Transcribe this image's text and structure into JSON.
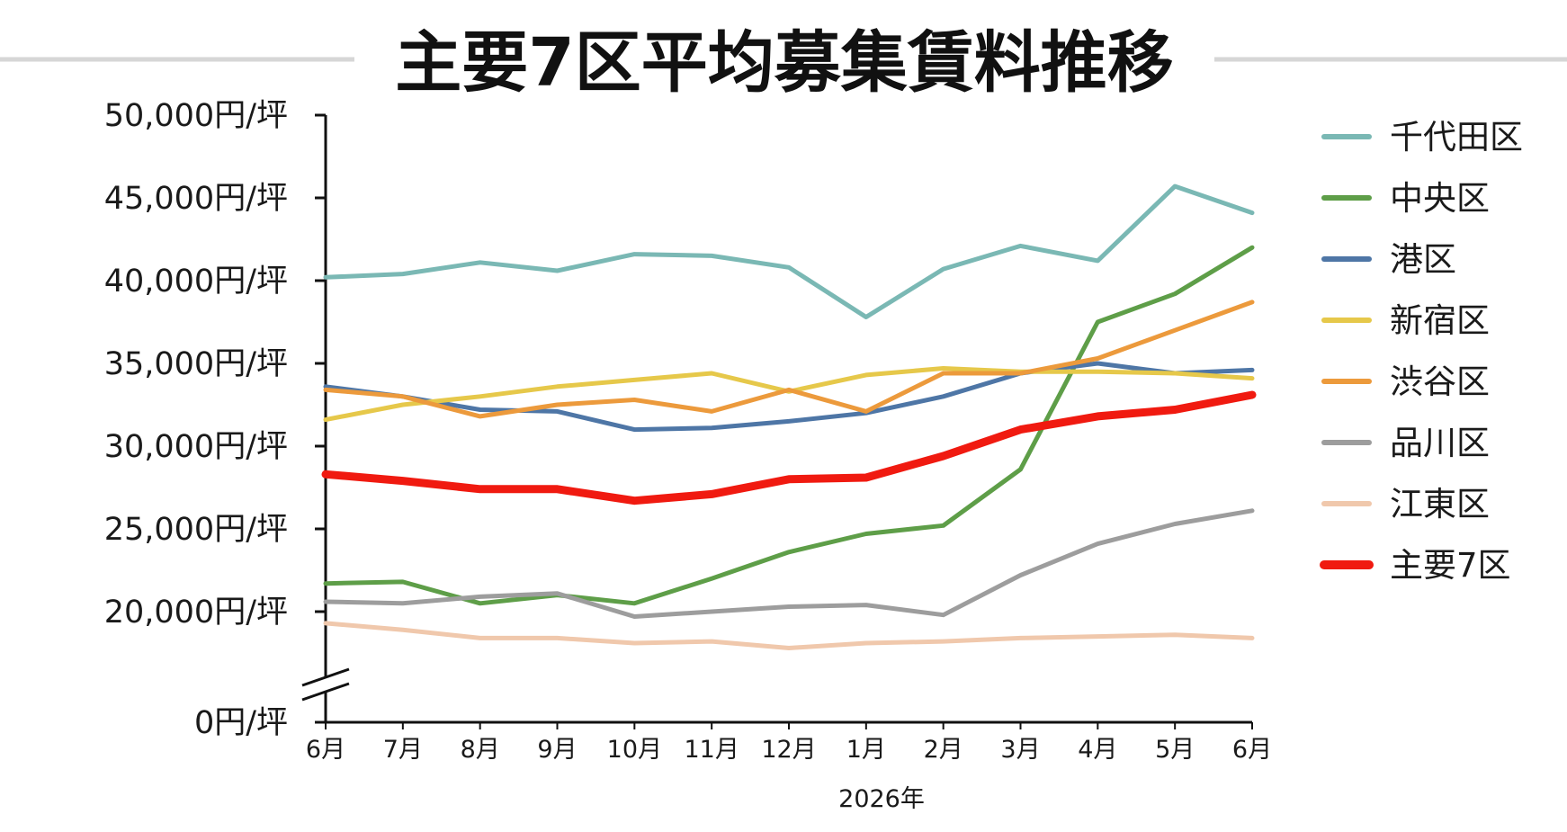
{
  "chart_data": {
    "type": "line",
    "title": "主要7区平均募集賃料推移",
    "xlabel": "2026年",
    "ylabel": "",
    "categories": [
      "6月",
      "7月",
      "8月",
      "9月",
      "10月",
      "11月",
      "12月",
      "1月",
      "2月",
      "3月",
      "4月",
      "5月",
      "6月"
    ],
    "y_tick_labels": [
      {
        "value": 0,
        "label": "0円/坪"
      },
      {
        "value": 20000,
        "label": "20,000円/坪"
      },
      {
        "value": 25000,
        "label": "25,000円/坪"
      },
      {
        "value": 30000,
        "label": "30,000円/坪"
      },
      {
        "value": 35000,
        "label": "35,000円/坪"
      },
      {
        "value": 40000,
        "label": "40,000円/坪"
      },
      {
        "value": 45000,
        "label": "45,000円/坪"
      },
      {
        "value": 50000,
        "label": "50,000円/坪"
      }
    ],
    "ylim": [
      0,
      50000
    ],
    "axis_break": true,
    "grid": false,
    "legend_position": "right",
    "series": [
      {
        "name": "千代田区",
        "color": "#7ab8b4",
        "emphasis": false,
        "values": [
          40200,
          40400,
          41100,
          40600,
          41600,
          41500,
          40800,
          37800,
          40700,
          42100,
          41200,
          45700,
          44100
        ]
      },
      {
        "name": "中央区",
        "color": "#5e9e48",
        "emphasis": false,
        "values": [
          21700,
          21800,
          20500,
          21000,
          20500,
          22000,
          23600,
          24700,
          25200,
          28600,
          37500,
          39200,
          42000
        ]
      },
      {
        "name": "港区",
        "color": "#4e76a6",
        "emphasis": false,
        "values": [
          33600,
          33000,
          32200,
          32100,
          31000,
          31100,
          31500,
          32000,
          33000,
          34400,
          35000,
          34400,
          34600
        ]
      },
      {
        "name": "新宿区",
        "color": "#e6c84a",
        "emphasis": false,
        "values": [
          31600,
          32500,
          33000,
          33600,
          34000,
          34400,
          33300,
          34300,
          34700,
          34500,
          34500,
          34400,
          34100
        ]
      },
      {
        "name": "渋谷区",
        "color": "#ec9a3c",
        "emphasis": false,
        "values": [
          33400,
          33000,
          31800,
          32500,
          32800,
          32100,
          33400,
          32100,
          34400,
          34400,
          35300,
          37000,
          38700
        ]
      },
      {
        "name": "品川区",
        "color": "#9d9d9d",
        "emphasis": false,
        "values": [
          20600,
          20500,
          20900,
          21100,
          19700,
          20000,
          20300,
          20400,
          19800,
          22200,
          24100,
          25300,
          26100
        ]
      },
      {
        "name": "江東区",
        "color": "#f0c8ac",
        "emphasis": false,
        "values": [
          19300,
          18900,
          18400,
          18400,
          18100,
          18200,
          17800,
          18100,
          18200,
          18400,
          18500,
          18600,
          18400
        ]
      },
      {
        "name": "主要7区",
        "color": "#f01a10",
        "emphasis": true,
        "values": [
          28300,
          27900,
          27400,
          27400,
          26700,
          27100,
          28000,
          28100,
          29400,
          31000,
          31800,
          32200,
          33100
        ]
      }
    ]
  }
}
